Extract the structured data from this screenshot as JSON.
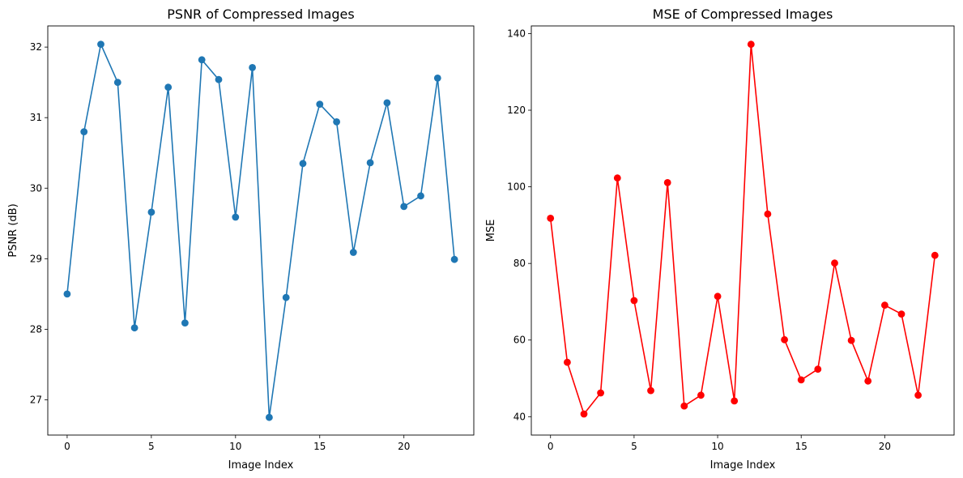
{
  "chart_data": [
    {
      "type": "line",
      "title": "PSNR of Compressed Images",
      "xlabel": "Image Index",
      "ylabel": "PSNR (dB)",
      "xlim": [
        -1.15,
        24.15
      ],
      "ylim": [
        26.5,
        32.3
      ],
      "xticks": [
        0,
        5,
        10,
        15,
        20
      ],
      "yticks": [
        27,
        28,
        29,
        30,
        31,
        32
      ],
      "color": "#1f77b4",
      "marker": "circle",
      "grid": false,
      "series": [
        {
          "x": [
            0,
            1,
            2,
            3,
            4,
            5,
            6,
            7,
            8,
            9,
            10,
            11,
            12,
            13,
            14,
            15,
            16,
            17,
            18,
            19,
            20,
            21,
            22,
            23
          ],
          "values": [
            28.5,
            30.8,
            32.04,
            31.5,
            28.02,
            29.66,
            31.43,
            28.09,
            31.82,
            31.54,
            29.59,
            31.71,
            26.75,
            28.45,
            30.35,
            31.19,
            30.94,
            29.09,
            30.36,
            31.21,
            29.74,
            29.89,
            31.56,
            28.99
          ]
        }
      ]
    },
    {
      "type": "line",
      "title": "MSE of Compressed Images",
      "xlabel": "Image Index",
      "ylabel": "MSE",
      "xlim": [
        -1.15,
        24.15
      ],
      "ylim": [
        35.2,
        142.0
      ],
      "xticks": [
        0,
        5,
        10,
        15,
        20
      ],
      "yticks": [
        40,
        60,
        80,
        100,
        120,
        140
      ],
      "color": "#ff0000",
      "marker": "circle",
      "grid": false,
      "series": [
        {
          "x": [
            0,
            1,
            2,
            3,
            4,
            5,
            6,
            7,
            8,
            9,
            10,
            11,
            12,
            13,
            14,
            15,
            16,
            17,
            18,
            19,
            20,
            21,
            22,
            23
          ],
          "values": [
            91.8,
            54.2,
            40.7,
            46.2,
            102.3,
            70.3,
            46.8,
            101.1,
            42.8,
            45.6,
            71.4,
            44.1,
            137.2,
            92.9,
            60.1,
            49.6,
            52.4,
            80.1,
            59.9,
            49.3,
            69.1,
            66.8,
            45.6,
            82.1
          ]
        }
      ]
    }
  ]
}
